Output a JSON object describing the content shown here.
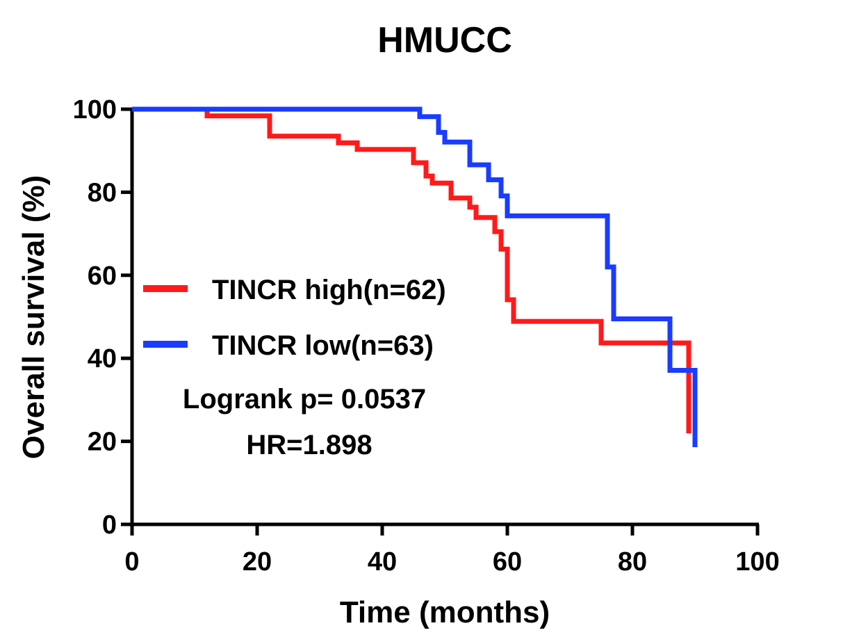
{
  "chart_data": {
    "type": "line",
    "step": true,
    "title": "HMUCC",
    "xlabel": "Time (months)",
    "ylabel": "Overall survival (%)",
    "xlim": [
      0,
      100
    ],
    "ylim": [
      0,
      100
    ],
    "xticks": [
      0,
      20,
      40,
      60,
      80,
      100
    ],
    "yticks": [
      0,
      20,
      40,
      60,
      80,
      100
    ],
    "xtick_labels": [
      "0",
      "20",
      "40",
      "60",
      "80",
      "100"
    ],
    "ytick_labels": [
      "0",
      "20",
      "40",
      "60",
      "80",
      "100"
    ],
    "legend_position": "middle-left",
    "series": [
      {
        "name": "TINCR high(n=62)",
        "color": "#ff1a1a",
        "points": [
          [
            0,
            100
          ],
          [
            12,
            100
          ],
          [
            12,
            98.4
          ],
          [
            22,
            98.4
          ],
          [
            22,
            93.5
          ],
          [
            33,
            93.5
          ],
          [
            33,
            91.9
          ],
          [
            36,
            91.9
          ],
          [
            36,
            90.3
          ],
          [
            45,
            90.3
          ],
          [
            45,
            87.1
          ],
          [
            47,
            87.1
          ],
          [
            47,
            83.9
          ],
          [
            48,
            83.9
          ],
          [
            48,
            82.2
          ],
          [
            51,
            82.2
          ],
          [
            51,
            78.6
          ],
          [
            54,
            78.6
          ],
          [
            54,
            76.4
          ],
          [
            55,
            76.4
          ],
          [
            55,
            73.9
          ],
          [
            58,
            73.9
          ],
          [
            58,
            70.5
          ],
          [
            59,
            70.5
          ],
          [
            59,
            66.3
          ],
          [
            60,
            66.3
          ],
          [
            60,
            54.1
          ],
          [
            61,
            54.1
          ],
          [
            61,
            48.9
          ],
          [
            75,
            48.9
          ],
          [
            75,
            43.7
          ],
          [
            89,
            43.7
          ],
          [
            89,
            21.9
          ]
        ]
      },
      {
        "name": "TINCR low(n=63)",
        "color": "#1a3cff",
        "points": [
          [
            0,
            100
          ],
          [
            46,
            100
          ],
          [
            46,
            98.2
          ],
          [
            49,
            98.2
          ],
          [
            49,
            94.4
          ],
          [
            50,
            94.4
          ],
          [
            50,
            92.1
          ],
          [
            54,
            92.1
          ],
          [
            54,
            86.6
          ],
          [
            57,
            86.6
          ],
          [
            57,
            83.0
          ],
          [
            59,
            83.0
          ],
          [
            59,
            79.1
          ],
          [
            60,
            79.1
          ],
          [
            60,
            74.3
          ],
          [
            76,
            74.3
          ],
          [
            76,
            62.0
          ],
          [
            77,
            62.0
          ],
          [
            77,
            49.5
          ],
          [
            86,
            49.5
          ],
          [
            86,
            37.1
          ],
          [
            90,
            37.1
          ],
          [
            90,
            18.6
          ]
        ]
      }
    ],
    "annotations": [
      "Logrank p= 0.0537",
      "HR=1.898"
    ]
  }
}
